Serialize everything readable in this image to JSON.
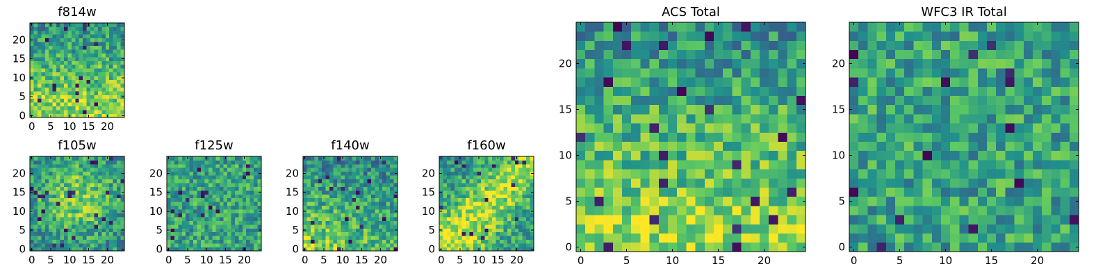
{
  "figure": {
    "colormap": "viridis",
    "colormap_stops": [
      "#440154",
      "#3b528b",
      "#21918c",
      "#5ec962",
      "#fde725"
    ]
  },
  "chart_data": [
    {
      "type": "heatmap",
      "title": "f814w",
      "grid": [
        25,
        25
      ],
      "xticks": [
        0,
        5,
        10,
        15,
        20
      ],
      "yticks": [
        0,
        5,
        10,
        15,
        20
      ],
      "xlim": [
        -0.5,
        24.5
      ],
      "ylim": [
        -0.5,
        24.5
      ],
      "value_note": "noisy field, brighter toward low y",
      "seed": 11,
      "trend": "bottom"
    },
    {
      "type": "heatmap",
      "title": "f105w",
      "grid": [
        25,
        25
      ],
      "xticks": [
        0,
        5,
        10,
        15,
        20
      ],
      "yticks": [
        0,
        5,
        10,
        15,
        20
      ],
      "xlim": [
        -0.5,
        24.5
      ],
      "ylim": [
        -0.5,
        24.5
      ],
      "seed": 23,
      "trend": "center"
    },
    {
      "type": "heatmap",
      "title": "f125w",
      "grid": [
        25,
        25
      ],
      "xticks": [
        0,
        5,
        10,
        15,
        20
      ],
      "yticks": [
        0,
        5,
        10,
        15,
        20
      ],
      "xlim": [
        -0.5,
        24.5
      ],
      "ylim": [
        -0.5,
        24.5
      ],
      "seed": 37,
      "trend": "flat"
    },
    {
      "type": "heatmap",
      "title": "f140w",
      "grid": [
        25,
        25
      ],
      "xticks": [
        0,
        5,
        10,
        15,
        20
      ],
      "yticks": [
        0,
        5,
        10,
        15,
        20
      ],
      "xlim": [
        -0.5,
        24.5
      ],
      "ylim": [
        -0.5,
        24.5
      ],
      "seed": 41,
      "trend": "bottomleft"
    },
    {
      "type": "heatmap",
      "title": "f160w",
      "grid": [
        25,
        25
      ],
      "xticks": [
        0,
        5,
        10,
        15,
        20
      ],
      "yticks": [
        0,
        5,
        10,
        15,
        20
      ],
      "xlim": [
        -0.5,
        24.5
      ],
      "ylim": [
        -0.5,
        24.5
      ],
      "seed": 53,
      "trend": "diagonal"
    },
    {
      "type": "heatmap",
      "title": "ACS Total",
      "grid": [
        25,
        25
      ],
      "xticks": [
        0,
        5,
        10,
        15,
        20
      ],
      "yticks": [
        0,
        5,
        10,
        15,
        20
      ],
      "xlim": [
        -0.5,
        24.5
      ],
      "ylim": [
        -0.5,
        24.5
      ],
      "seed": 67,
      "trend": "bottom"
    },
    {
      "type": "heatmap",
      "title": "WFC3 IR Total",
      "grid": [
        25,
        25
      ],
      "xticks": [
        0,
        5,
        10,
        15,
        20
      ],
      "yticks": [
        0,
        5,
        10,
        15,
        20
      ],
      "xlim": [
        -0.5,
        24.5
      ],
      "ylim": [
        -0.5,
        24.5
      ],
      "seed": 79,
      "trend": "flat"
    }
  ]
}
